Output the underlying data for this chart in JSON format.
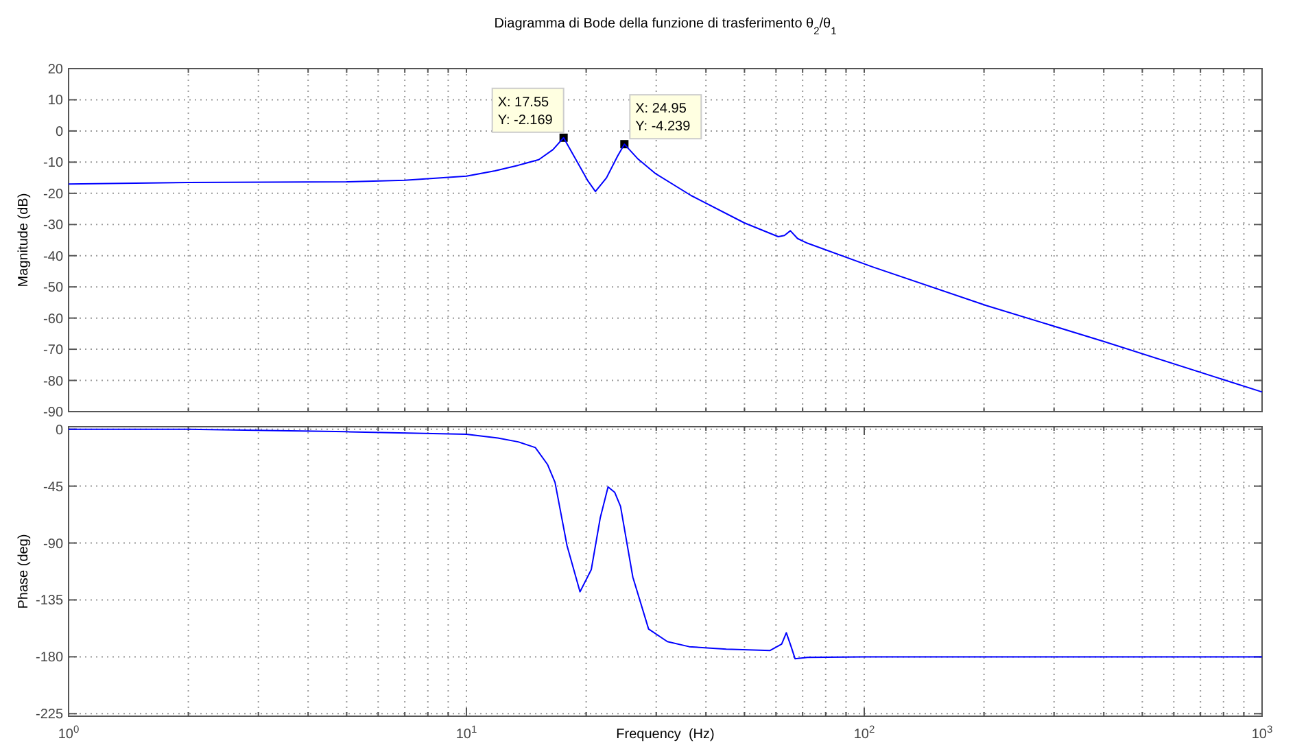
{
  "chart_data": [
    {
      "type": "line",
      "title": "Diagramma di Bode della funzione di trasferimento θ$_{2}$/θ$_{1}$",
      "ylabel": "Magnitude (dB)",
      "log": "x",
      "grid": true,
      "tick_labels": "y",
      "xlim": [
        1,
        1000
      ],
      "ylim": [
        -90,
        20
      ],
      "xticks": [
        {
          "value": 1,
          "label": null
        },
        {
          "value": 2,
          "label": null
        },
        {
          "value": 3,
          "label": null
        },
        {
          "value": 4,
          "label": null
        },
        {
          "value": 5,
          "label": null
        },
        {
          "value": 6,
          "label": null
        },
        {
          "value": 7,
          "label": null
        },
        {
          "value": 8,
          "label": null
        },
        {
          "value": 9,
          "label": null
        },
        {
          "value": 10,
          "label": null
        },
        {
          "value": 20,
          "label": null
        },
        {
          "value": 30,
          "label": null
        },
        {
          "value": 40,
          "label": null
        },
        {
          "value": 50,
          "label": null
        },
        {
          "value": 60,
          "label": null
        },
        {
          "value": 70,
          "label": null
        },
        {
          "value": 80,
          "label": null
        },
        {
          "value": 90,
          "label": null
        },
        {
          "value": 100,
          "label": null
        },
        {
          "value": 200,
          "label": null
        },
        {
          "value": 300,
          "label": null
        },
        {
          "value": 400,
          "label": null
        },
        {
          "value": 500,
          "label": null
        },
        {
          "value": 600,
          "label": null
        },
        {
          "value": 700,
          "label": null
        },
        {
          "value": 800,
          "label": null
        },
        {
          "value": 900,
          "label": null
        },
        {
          "value": 1000,
          "label": null
        }
      ],
      "yticks": [
        20,
        10,
        0,
        -10,
        -20,
        -30,
        -40,
        -50,
        -60,
        -70,
        -80,
        -90
      ],
      "series": [
        {
          "color": "#0000ff",
          "x": [
            1,
            2,
            5,
            7,
            10,
            11.8,
            13.5,
            15.2,
            16.5,
            17.55,
            19,
            20.2,
            21.1,
            22.5,
            24,
            24.95,
            27,
            29.9,
            36.7,
            50,
            60.8,
            63,
            65.2,
            68,
            72,
            105,
            203,
            400,
            1000
          ],
          "values": [
            -17,
            -16.5,
            -16.3,
            -15.8,
            -14.5,
            -12.8,
            -11,
            -9.2,
            -6,
            -2.169,
            -10,
            -16,
            -19.4,
            -15,
            -8,
            -4.239,
            -9,
            -13.7,
            -20.7,
            -29.5,
            -33.9,
            -33.5,
            -32,
            -34.5,
            -36,
            -43.6,
            -56,
            -67.5,
            -83.7
          ]
        }
      ],
      "annotations": [
        {
          "text": "X: 17.55\nY: -2.169",
          "x": 17.55,
          "y": -2.169
        },
        {
          "text": "X: 24.95\nY: -4.239",
          "x": 24.95,
          "y": -4.239
        }
      ]
    },
    {
      "type": "line",
      "xlabel": "Frequency  (Hz)",
      "ylabel": "Phase (deg)",
      "log": "x",
      "grid": true,
      "xlim": [
        1,
        1000
      ],
      "ylim": [
        -227,
        2
      ],
      "xticks": [
        {
          "value": 1,
          "label": "10$^{0}$"
        },
        {
          "value": 2,
          "label": null
        },
        {
          "value": 3,
          "label": null
        },
        {
          "value": 4,
          "label": null
        },
        {
          "value": 5,
          "label": null
        },
        {
          "value": 6,
          "label": null
        },
        {
          "value": 7,
          "label": null
        },
        {
          "value": 8,
          "label": null
        },
        {
          "value": 9,
          "label": null
        },
        {
          "value": 10,
          "label": "10$^{1}$"
        },
        {
          "value": 20,
          "label": null
        },
        {
          "value": 30,
          "label": null
        },
        {
          "value": 40,
          "label": null
        },
        {
          "value": 50,
          "label": null
        },
        {
          "value": 60,
          "label": null
        },
        {
          "value": 70,
          "label": null
        },
        {
          "value": 80,
          "label": null
        },
        {
          "value": 90,
          "label": null
        },
        {
          "value": 100,
          "label": "10$^{2}$"
        },
        {
          "value": 200,
          "label": null
        },
        {
          "value": 300,
          "label": null
        },
        {
          "value": 400,
          "label": null
        },
        {
          "value": 500,
          "label": null
        },
        {
          "value": 600,
          "label": null
        },
        {
          "value": 700,
          "label": null
        },
        {
          "value": 800,
          "label": null
        },
        {
          "value": 900,
          "label": null
        },
        {
          "value": 1000,
          "label": "10$^{3}$"
        }
      ],
      "yticks": [
        0,
        -45,
        -90,
        -135,
        -180,
        -225
      ],
      "series": [
        {
          "color": "#0000ff",
          "x": [
            1,
            2,
            5,
            10,
            12,
            13.5,
            14.9,
            16,
            16.7,
            17.9,
            19.3,
            20.6,
            21.7,
            22.7,
            23.6,
            24.4,
            26.2,
            28.7,
            32,
            36.3,
            45,
            58,
            62,
            63.7,
            65.5,
            67,
            72,
            100,
            1000
          ],
          "values": [
            0,
            0,
            -2,
            -4,
            -7,
            -10,
            -14.5,
            -28,
            -42,
            -92,
            -128.6,
            -111,
            -70,
            -45.6,
            -50,
            -61,
            -117,
            -158,
            -168,
            -172,
            -174,
            -175,
            -170,
            -161,
            -172,
            -181.5,
            -180.5,
            -180,
            -180
          ]
        }
      ]
    }
  ]
}
